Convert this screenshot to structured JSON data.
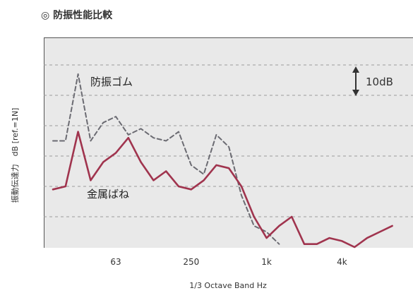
{
  "title": "◎ 防振性能比較",
  "chart_data": {
    "type": "line",
    "xlabel": "1/3 Octave Band Hz",
    "ylabel": "振動伝達力　dB [ref.=1N]",
    "x_tick_labels": [
      "63",
      "250",
      "1k",
      "4k"
    ],
    "scale_annotation": "10dB",
    "grid": true,
    "ylim_db": [
      0,
      70
    ],
    "series": [
      {
        "name": "防振ゴム",
        "style": "dashed",
        "color": "#6b6b72",
        "values_db": [
          35,
          35,
          57,
          35,
          41,
          43,
          37,
          39,
          36,
          35,
          38,
          27,
          24,
          37,
          33,
          17,
          7,
          5,
          1
        ]
      },
      {
        "name": "金属ばね",
        "style": "solid",
        "color": "#a0344e",
        "values_db": [
          19,
          20,
          38,
          22,
          28,
          31,
          36,
          28,
          22,
          25,
          20,
          19,
          22,
          27,
          26,
          20,
          10,
          3,
          7,
          10,
          1,
          1,
          3,
          2,
          0,
          3,
          5,
          7
        ]
      }
    ]
  }
}
